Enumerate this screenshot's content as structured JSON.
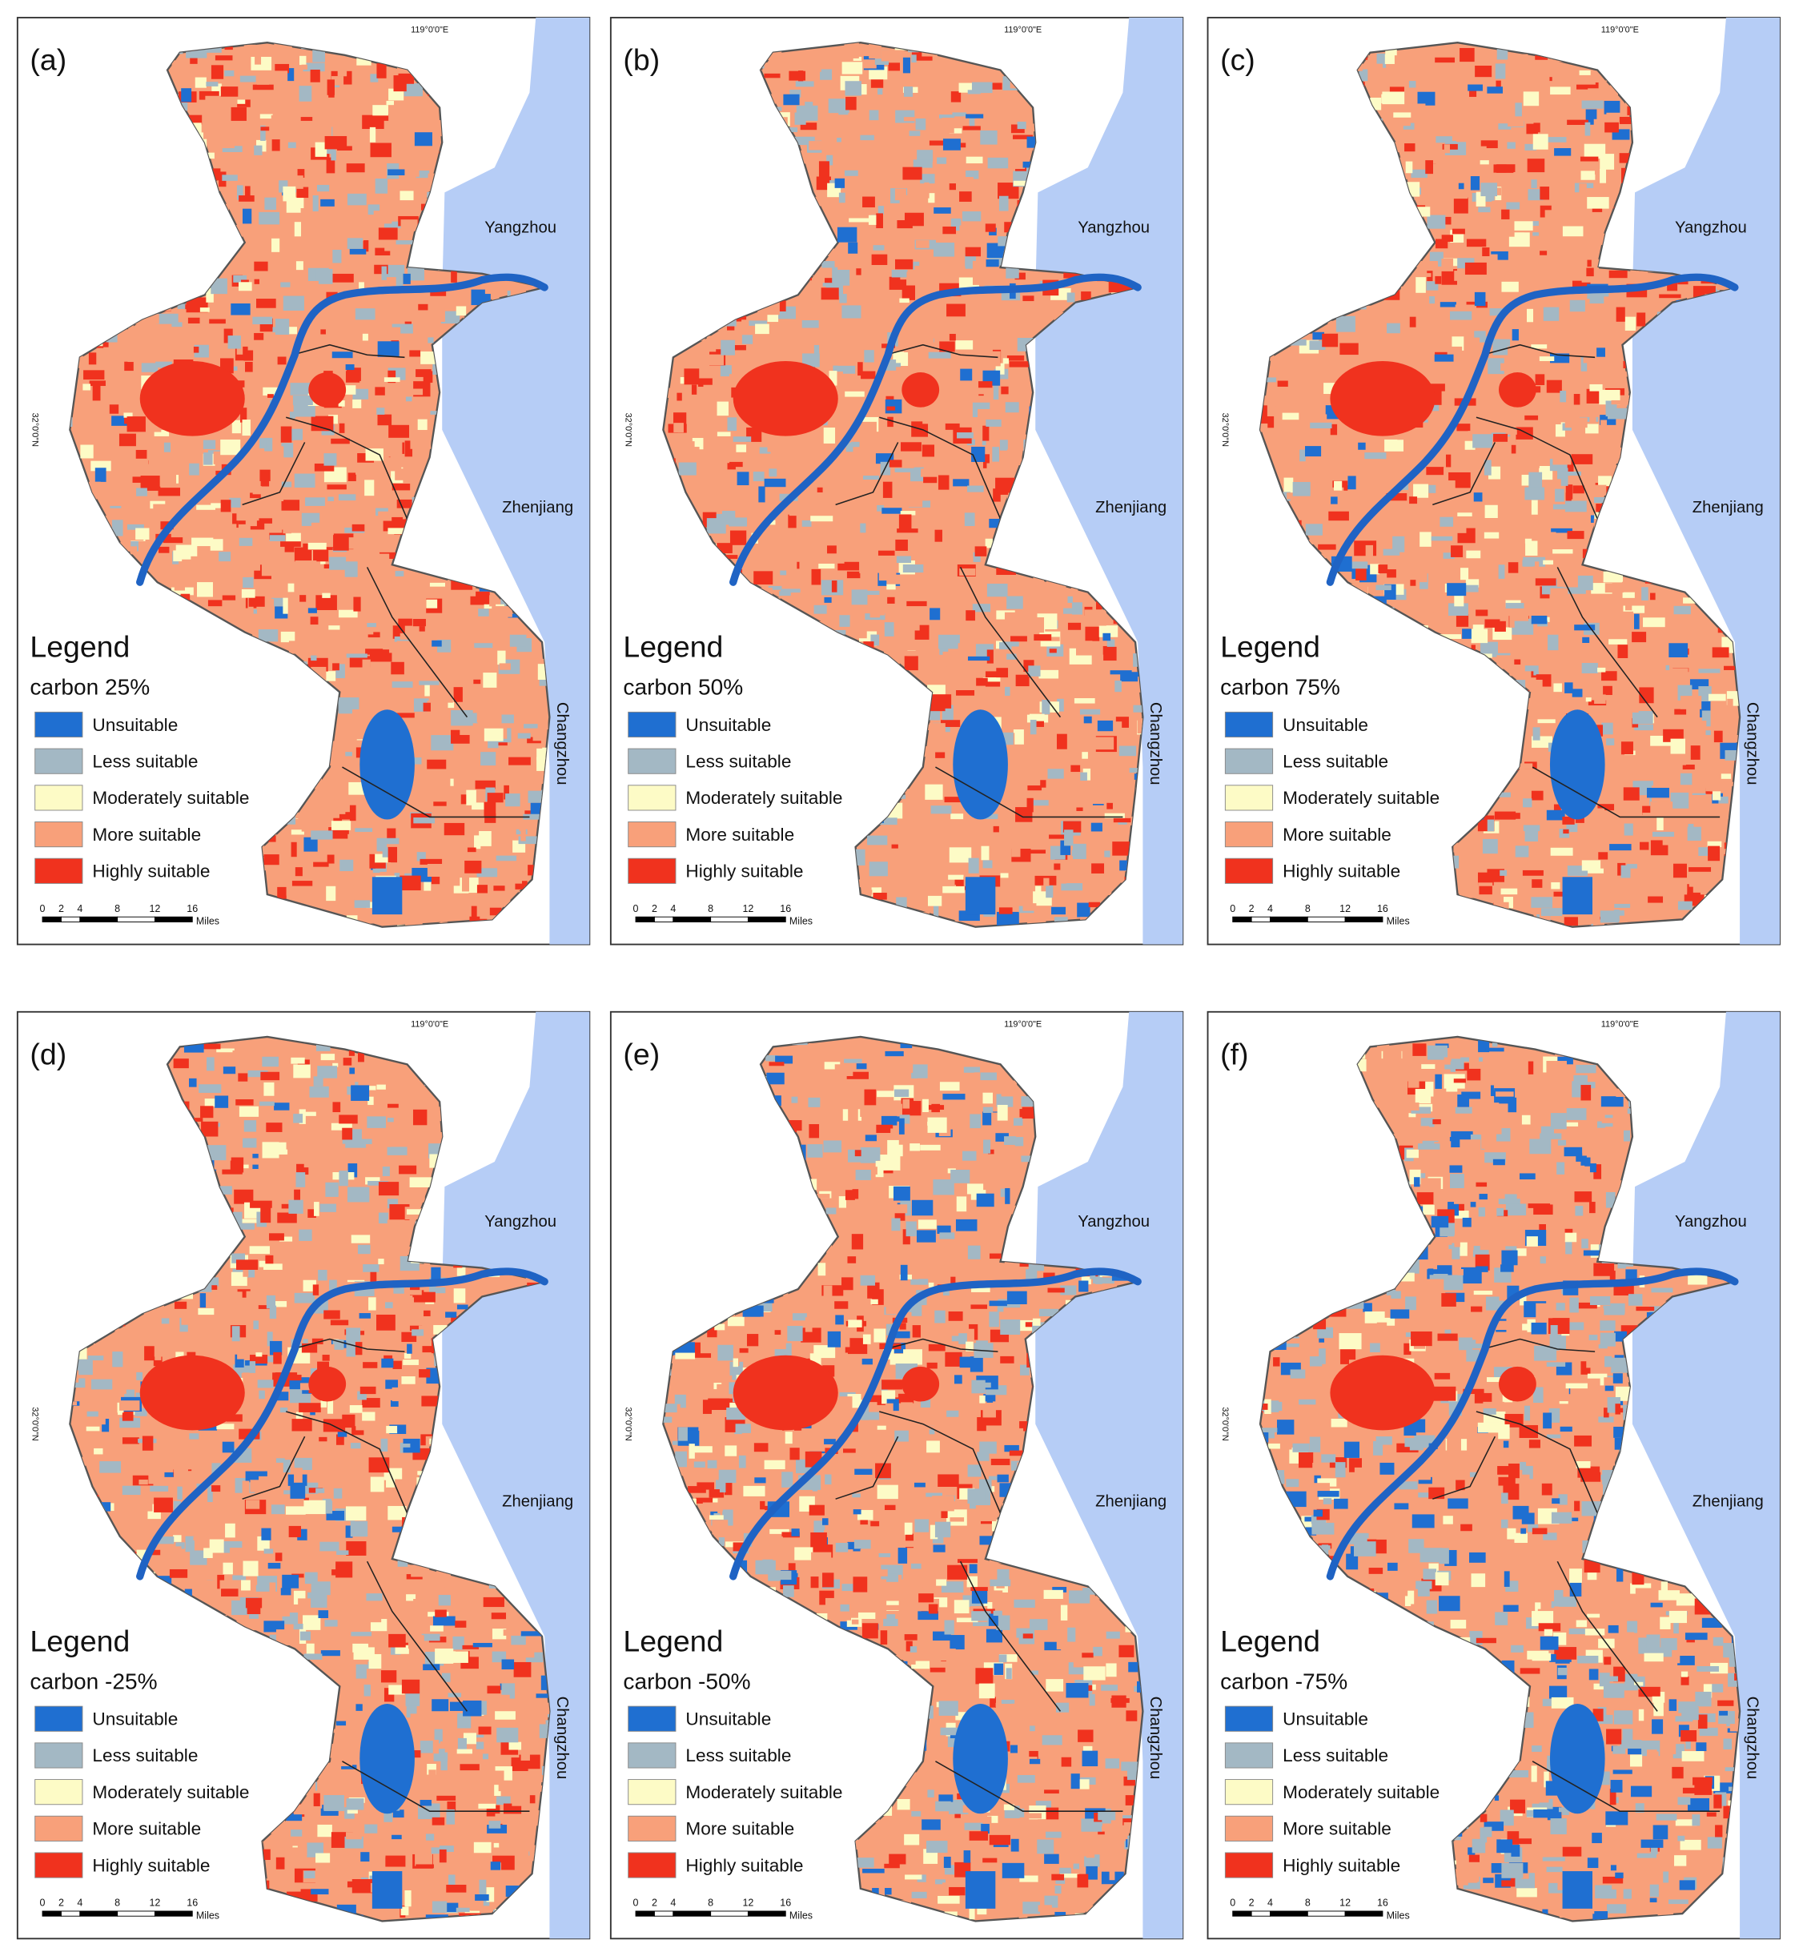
{
  "figure": {
    "panels": [
      {
        "label": "(a)",
        "scenario": "carbon 25%"
      },
      {
        "label": "(b)",
        "scenario": "carbon 50%"
      },
      {
        "label": "(c)",
        "scenario": "carbon 75%"
      },
      {
        "label": "(d)",
        "scenario": "carbon -25%"
      },
      {
        "label": "(e)",
        "scenario": "carbon -50%"
      },
      {
        "label": "(f)",
        "scenario": "carbon -75%"
      }
    ],
    "legend": {
      "title": "Legend",
      "classes": [
        {
          "name": "Unsuitable",
          "color": "#1f6fd1"
        },
        {
          "name": "Less suitable",
          "color": "#a3b8c4"
        },
        {
          "name": "Moderately suitable",
          "color": "#fdfbc6"
        },
        {
          "name": "More suitable",
          "color": "#f8a07a"
        },
        {
          "name": "Highly suitable",
          "color": "#f0321e"
        }
      ]
    },
    "scale_bar": {
      "ticks": [
        0,
        2,
        4,
        8,
        12,
        16
      ],
      "unit": "Miles"
    },
    "graticule": {
      "longitude": "119°0'0\"E",
      "latitude": "32°0'0\"N"
    },
    "places": [
      "Yangzhou",
      "Zhenjiang",
      "Changzhou"
    ]
  }
}
